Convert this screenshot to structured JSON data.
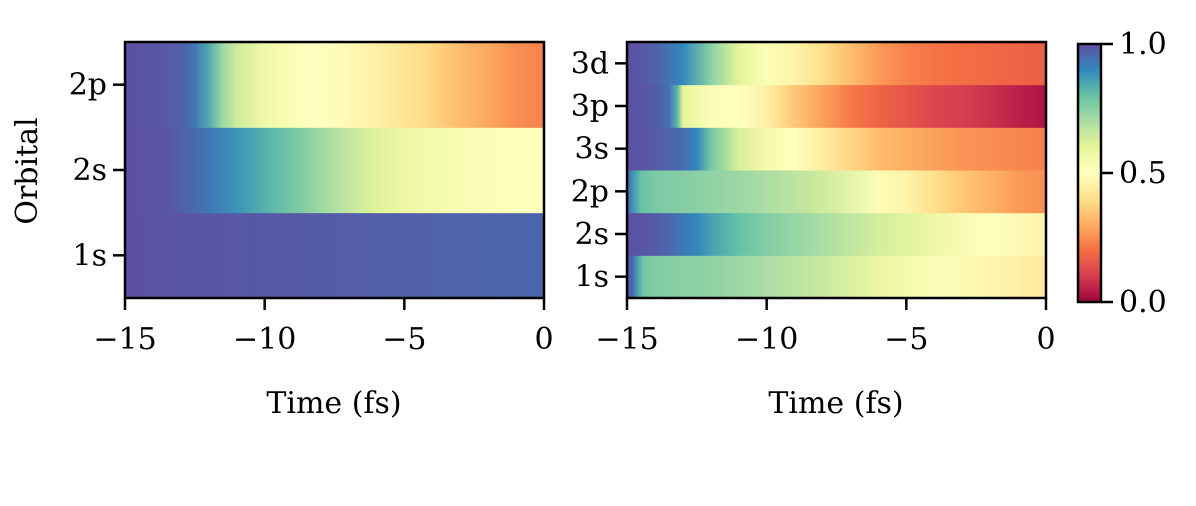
{
  "colormap": {
    "name": "Spectral",
    "stops": [
      "#9e0142",
      "#d53e4f",
      "#f46d43",
      "#fdae61",
      "#fee08b",
      "#ffffbf",
      "#e6f598",
      "#abdda4",
      "#66c2a5",
      "#3288bd",
      "#5e4fa2"
    ]
  },
  "chart_data": [
    {
      "type": "heatmap",
      "xlabel": "Time (fs)",
      "ylabel": "Orbital",
      "xlim": [
        -15,
        0
      ],
      "x_ticks": [
        -15,
        -10,
        -5,
        0
      ],
      "x_tick_labels": [
        "−15",
        "−10",
        "−5",
        "0"
      ],
      "rows": [
        {
          "label": "1s",
          "times": [
            -15,
            -13,
            -11,
            -9,
            -7,
            -5,
            -3,
            -1,
            0
          ],
          "values": [
            1.0,
            0.99,
            0.985,
            0.98,
            0.975,
            0.97,
            0.965,
            0.96,
            0.96
          ]
        },
        {
          "label": "2s",
          "times": [
            -15,
            -13.5,
            -13,
            -12,
            -11,
            -10,
            -9,
            -8,
            -7,
            -6,
            -5,
            -4,
            -3,
            -2,
            -1,
            0
          ],
          "values": [
            1.0,
            0.99,
            0.97,
            0.93,
            0.88,
            0.83,
            0.78,
            0.72,
            0.66,
            0.61,
            0.57,
            0.55,
            0.53,
            0.52,
            0.51,
            0.51
          ]
        },
        {
          "label": "2p",
          "times": [
            -15,
            -14,
            -13,
            -12.5,
            -12,
            -11.5,
            -11,
            -10,
            -9,
            -8,
            -7,
            -6,
            -5,
            -4,
            -3,
            -2,
            -1,
            0
          ],
          "values": [
            1.0,
            0.99,
            0.97,
            0.93,
            0.84,
            0.72,
            0.64,
            0.56,
            0.52,
            0.5,
            0.48,
            0.45,
            0.42,
            0.38,
            0.33,
            0.29,
            0.25,
            0.23
          ]
        }
      ]
    },
    {
      "type": "heatmap",
      "xlabel": "Time (fs)",
      "ylabel": "",
      "xlim": [
        -15,
        0
      ],
      "x_ticks": [
        -15,
        -10,
        -5,
        0
      ],
      "x_tick_labels": [
        "−15",
        "−10",
        "−5",
        "0"
      ],
      "rows": [
        {
          "label": "1s",
          "times": [
            -15,
            -14.8,
            -14.6,
            -14.4,
            -14,
            -12,
            -10,
            -8,
            -6,
            -4,
            -2,
            0
          ],
          "values": [
            0.99,
            0.96,
            0.85,
            0.78,
            0.76,
            0.74,
            0.7,
            0.65,
            0.58,
            0.52,
            0.47,
            0.43
          ]
        },
        {
          "label": "2s",
          "times": [
            -15,
            -14,
            -13,
            -12.5,
            -12,
            -11,
            -10,
            -8,
            -6,
            -4,
            -2,
            0
          ],
          "values": [
            1.0,
            0.98,
            0.93,
            0.9,
            0.86,
            0.8,
            0.76,
            0.7,
            0.63,
            0.57,
            0.5,
            0.46
          ]
        },
        {
          "label": "2p",
          "times": [
            -15,
            -14.8,
            -14.5,
            -14,
            -12,
            -10,
            -8,
            -6,
            -5,
            -4,
            -3,
            -2,
            -1,
            0
          ],
          "values": [
            0.98,
            0.88,
            0.8,
            0.77,
            0.74,
            0.7,
            0.64,
            0.52,
            0.46,
            0.4,
            0.35,
            0.31,
            0.27,
            0.25
          ]
        },
        {
          "label": "3s",
          "times": [
            -15,
            -14,
            -13,
            -12.5,
            -12,
            -11,
            -10,
            -9,
            -8,
            -7,
            -6,
            -5,
            -4,
            -3,
            -2,
            -1,
            0
          ],
          "values": [
            1.0,
            0.98,
            0.95,
            0.9,
            0.78,
            0.62,
            0.55,
            0.5,
            0.44,
            0.38,
            0.33,
            0.3,
            0.28,
            0.26,
            0.25,
            0.24,
            0.23
          ]
        },
        {
          "label": "3p",
          "times": [
            -15,
            -14,
            -13.5,
            -13.2,
            -13,
            -12,
            -11,
            -10,
            -9,
            -8,
            -7,
            -6,
            -5,
            -4,
            -3,
            -2,
            -1,
            0
          ],
          "values": [
            1.0,
            0.98,
            0.94,
            0.82,
            0.6,
            0.52,
            0.5,
            0.45,
            0.35,
            0.28,
            0.22,
            0.18,
            0.15,
            0.12,
            0.1,
            0.08,
            0.05,
            0.03
          ]
        },
        {
          "label": "3d",
          "times": [
            -15,
            -14,
            -13,
            -12,
            -11,
            -10,
            -9,
            -8,
            -7,
            -6,
            -5,
            -4,
            -3,
            -2,
            -1,
            0
          ],
          "values": [
            1.0,
            0.97,
            0.9,
            0.75,
            0.6,
            0.52,
            0.46,
            0.4,
            0.33,
            0.27,
            0.23,
            0.21,
            0.2,
            0.19,
            0.18,
            0.17
          ]
        }
      ]
    }
  ],
  "colorbar": {
    "range": [
      0.0,
      1.0
    ],
    "ticks": [
      0.0,
      0.5,
      1.0
    ],
    "tick_labels": [
      "0.0",
      "0.5",
      "1.0"
    ]
  }
}
